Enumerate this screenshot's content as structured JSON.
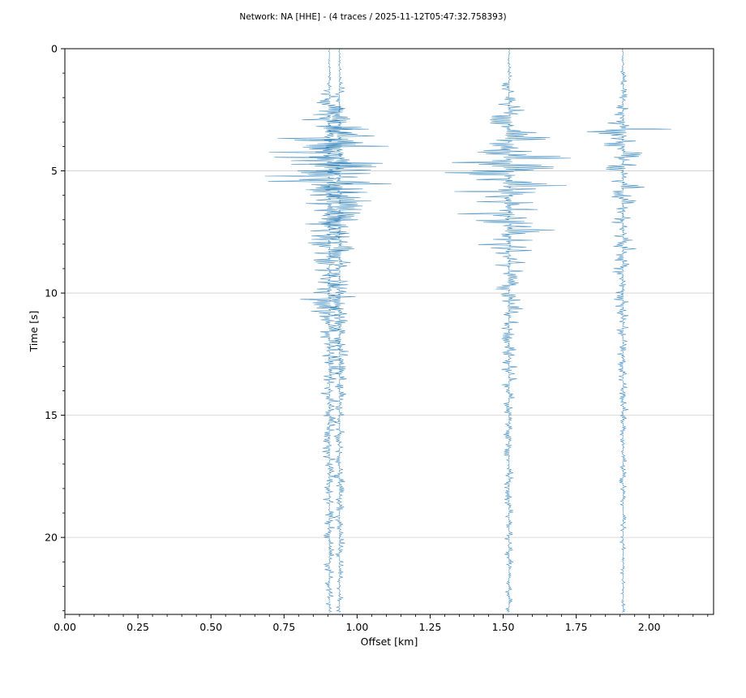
{
  "chart_data": {
    "type": "line",
    "title": "Network: NA [HHE] - (4 traces / 2025-11-12T05:47:32.758393)",
    "xlabel": "Offset [km]",
    "ylabel": "Time [s]",
    "xlim": [
      0.0,
      2.22
    ],
    "ylim": [
      23.15,
      0
    ],
    "y_inverted": true,
    "grid": "horizontal",
    "trace_color": "#1f77b4",
    "x_ticks": [
      "0.00",
      "0.25",
      "0.50",
      "0.75",
      "1.00",
      "1.25",
      "1.50",
      "1.75",
      "2.00"
    ],
    "x_tick_values": [
      0.0,
      0.25,
      0.5,
      0.75,
      1.0,
      1.25,
      1.5,
      1.75,
      2.0
    ],
    "y_ticks": [
      "0",
      "5",
      "10",
      "15",
      "20"
    ],
    "y_tick_values": [
      0,
      5,
      10,
      15,
      20
    ],
    "series": [
      {
        "offset_km": 0.905,
        "envelope": [
          [
            0,
            0.003
          ],
          [
            1.2,
            0.01
          ],
          [
            2.5,
            0.08
          ],
          [
            3.5,
            0.24
          ],
          [
            4.2,
            0.31
          ],
          [
            5.0,
            0.3
          ],
          [
            5.8,
            0.28
          ],
          [
            7.0,
            0.19
          ],
          [
            8.0,
            0.12
          ],
          [
            9.0,
            0.08
          ],
          [
            10.3,
            0.14
          ],
          [
            11.0,
            0.06
          ],
          [
            12.5,
            0.07
          ],
          [
            14.0,
            0.04
          ],
          [
            17.0,
            0.03
          ],
          [
            20.0,
            0.03
          ],
          [
            23.0,
            0.02
          ]
        ]
      },
      {
        "offset_km": 0.94,
        "envelope": [
          [
            0,
            0.003
          ],
          [
            1.2,
            0.01
          ],
          [
            2.5,
            0.05
          ],
          [
            3.5,
            0.15
          ],
          [
            4.2,
            0.22
          ],
          [
            5.0,
            0.2
          ],
          [
            6.0,
            0.16
          ],
          [
            7.0,
            0.12
          ],
          [
            8.0,
            0.1
          ],
          [
            9.0,
            0.06
          ],
          [
            11.0,
            0.05
          ],
          [
            13.0,
            0.04
          ],
          [
            16.0,
            0.025
          ],
          [
            20.0,
            0.025
          ],
          [
            23.0,
            0.02
          ]
        ]
      },
      {
        "offset_km": 1.52,
        "envelope": [
          [
            0,
            0.003
          ],
          [
            0.8,
            0.01
          ],
          [
            2.0,
            0.04
          ],
          [
            3.2,
            0.12
          ],
          [
            4.0,
            0.24
          ],
          [
            5.0,
            0.28
          ],
          [
            5.6,
            0.3
          ],
          [
            6.3,
            0.25
          ],
          [
            7.5,
            0.2
          ],
          [
            8.5,
            0.12
          ],
          [
            9.5,
            0.08
          ],
          [
            11.0,
            0.05
          ],
          [
            13.0,
            0.04
          ],
          [
            16.0,
            0.025
          ],
          [
            20.0,
            0.02
          ],
          [
            23.0,
            0.015
          ]
        ]
      },
      {
        "offset_km": 1.91,
        "envelope": [
          [
            0,
            0.003
          ],
          [
            0.8,
            0.01
          ],
          [
            2.0,
            0.03
          ],
          [
            3.0,
            0.06
          ],
          [
            3.25,
            0.23
          ],
          [
            3.6,
            0.12
          ],
          [
            4.3,
            0.1
          ],
          [
            5.0,
            0.11
          ],
          [
            5.8,
            0.08
          ],
          [
            7.0,
            0.06
          ],
          [
            8.5,
            0.05
          ],
          [
            10.0,
            0.04
          ],
          [
            12.0,
            0.03
          ],
          [
            16.0,
            0.02
          ],
          [
            20.0,
            0.015
          ],
          [
            23.0,
            0.01
          ]
        ]
      }
    ]
  }
}
